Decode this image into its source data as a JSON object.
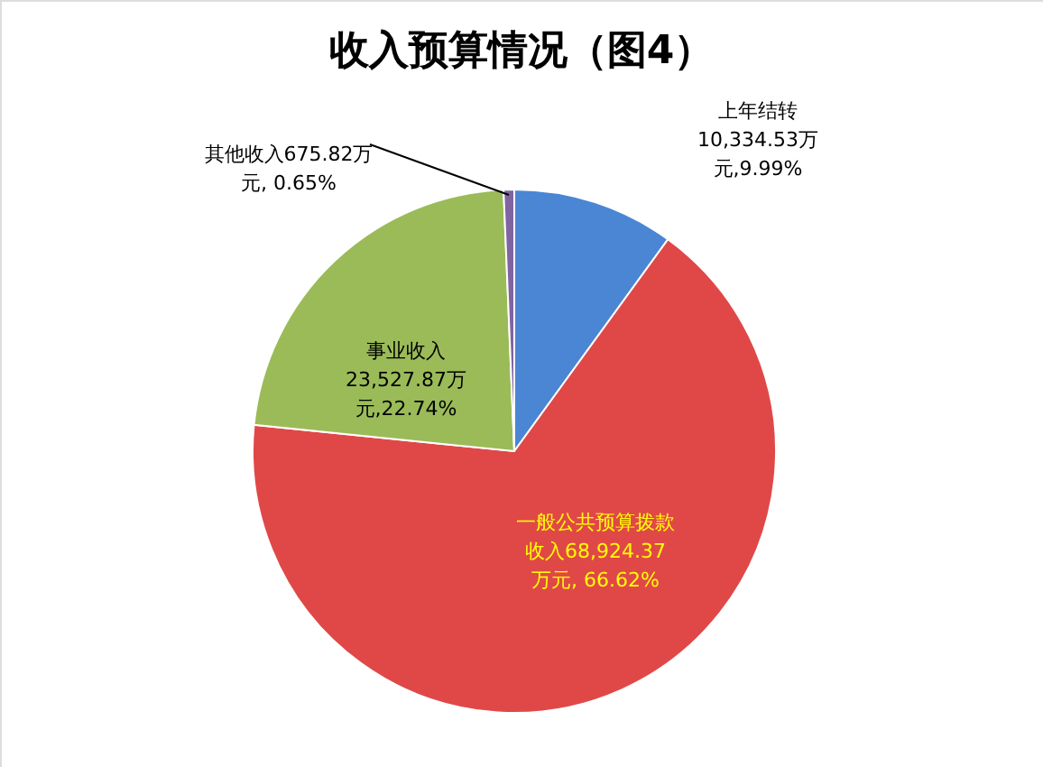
{
  "chart_data": {
    "type": "pie",
    "title": "收入预算情况（图4）",
    "categories": [
      "上年结转",
      "一般公共预算拨款收入",
      "事业收入",
      "其他收入"
    ],
    "values": [
      10334.53,
      68924.37,
      23527.87,
      675.82
    ],
    "colors": [
      "#4a86d4",
      "#e04848",
      "#9bbb59",
      "#8064a2"
    ],
    "value_labels": [
      "10,334.53万元,9.99%",
      "68,924.37万元, 66.62%",
      "23,527.87万元,22.74%",
      "675.82万元, 0.65%"
    ],
    "legend": false
  }
}
